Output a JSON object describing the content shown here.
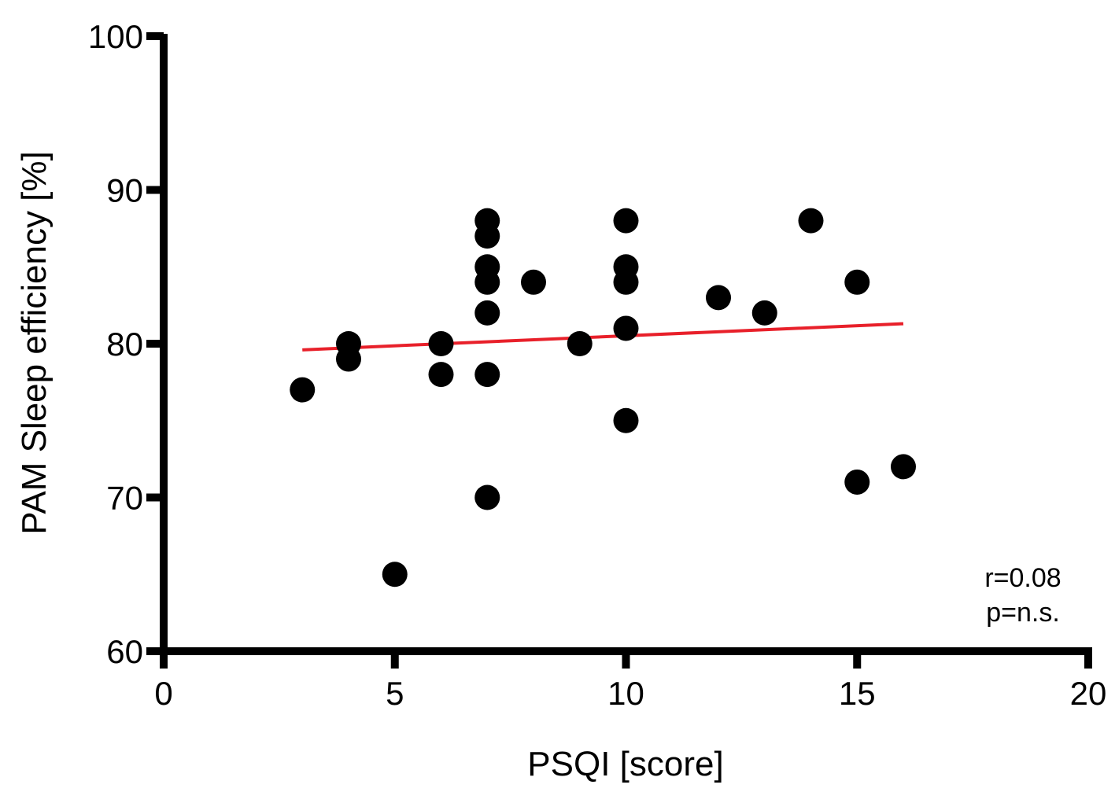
{
  "chart_data": {
    "type": "scatter",
    "xlabel": "PSQI [score]",
    "ylabel": "PAM Sleep efficiency [%]",
    "xlim": [
      0,
      20
    ],
    "ylim": [
      60,
      100
    ],
    "x_ticks": [
      0,
      5,
      10,
      15,
      20
    ],
    "y_ticks": [
      60,
      70,
      80,
      90,
      100
    ],
    "grid": false,
    "points": [
      {
        "x": 3,
        "y": 77
      },
      {
        "x": 4,
        "y": 80
      },
      {
        "x": 4,
        "y": 79
      },
      {
        "x": 5,
        "y": 65
      },
      {
        "x": 6,
        "y": 80
      },
      {
        "x": 6,
        "y": 78
      },
      {
        "x": 7,
        "y": 88
      },
      {
        "x": 7,
        "y": 87
      },
      {
        "x": 7,
        "y": 85
      },
      {
        "x": 7,
        "y": 84
      },
      {
        "x": 7,
        "y": 82
      },
      {
        "x": 7,
        "y": 78
      },
      {
        "x": 7,
        "y": 70
      },
      {
        "x": 8,
        "y": 84
      },
      {
        "x": 9,
        "y": 80
      },
      {
        "x": 10,
        "y": 88
      },
      {
        "x": 10,
        "y": 85
      },
      {
        "x": 10,
        "y": 84
      },
      {
        "x": 10,
        "y": 81
      },
      {
        "x": 10,
        "y": 75
      },
      {
        "x": 12,
        "y": 83
      },
      {
        "x": 13,
        "y": 82
      },
      {
        "x": 14,
        "y": 88
      },
      {
        "x": 15,
        "y": 84
      },
      {
        "x": 15,
        "y": 71
      },
      {
        "x": 16,
        "y": 72
      }
    ],
    "fit_line": {
      "x": [
        3,
        16
      ],
      "y": [
        79.6,
        81.3
      ]
    },
    "annotations": [
      "r=0.08",
      "p=n.s."
    ],
    "colors": {
      "points": "#000000",
      "fit_line": "#e8202a",
      "axes": "#000000"
    }
  }
}
